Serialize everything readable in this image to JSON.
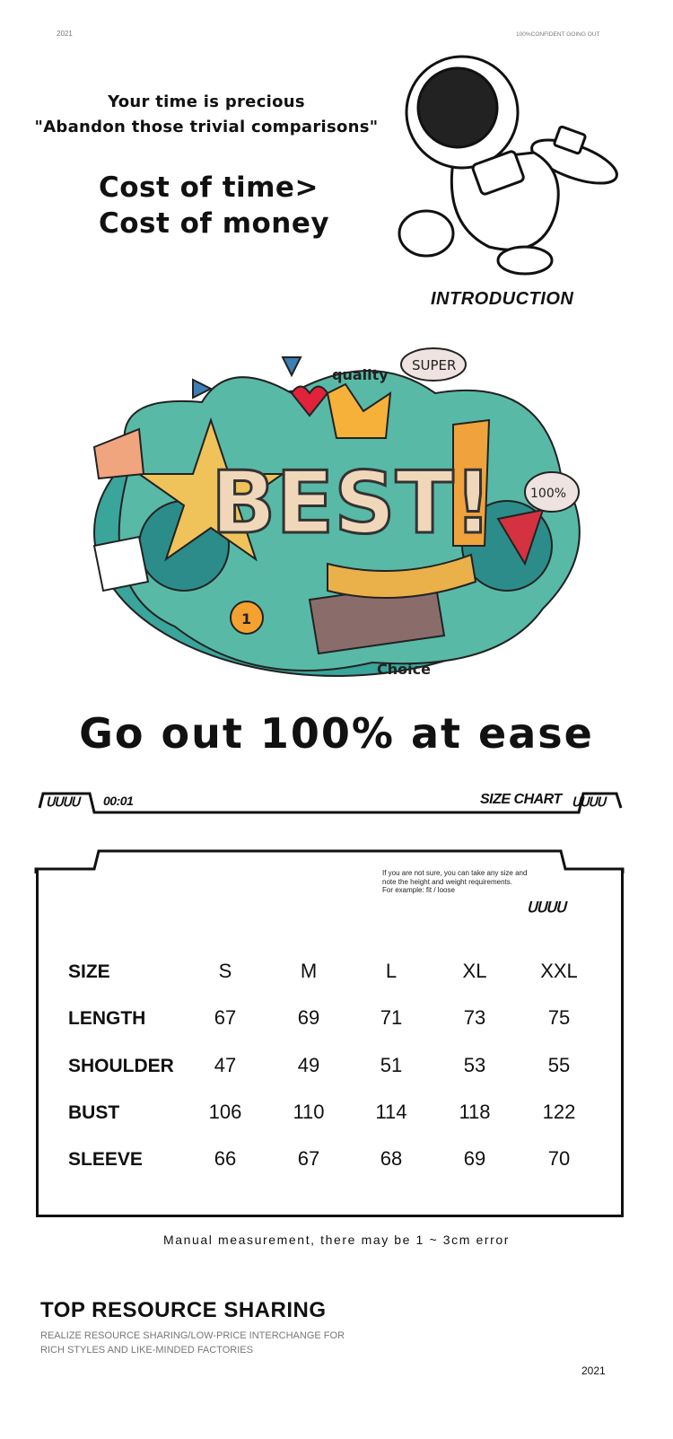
{
  "header": {
    "year": "2021",
    "tagline": "100%CONFIDENT GOING OUT"
  },
  "intro": {
    "line1": "Your time is precious",
    "line2": "\"Abandon those trivial comparisons\"",
    "cost1": "Cost of time>",
    "cost2": "Cost of money",
    "label": "INTRODUCTION"
  },
  "illustration": {
    "quality": "quality",
    "super": "SUPER",
    "best": "BEST!",
    "percent": "100%",
    "choice": "Choice",
    "one": "1"
  },
  "headline": "Go out 100% at ease",
  "size_chart": {
    "counter": "00:01",
    "title": "SIZE CHART",
    "tab_glyphs": "ᑌᑌᑌᑌ",
    "note": [
      "If you are not sure, you can take any size and",
      "note the height and weight requirements.",
      "For example: fit / loose"
    ],
    "rows": [
      {
        "label": "SIZE",
        "values": [
          "S",
          "M",
          "L",
          "XL",
          "XXL"
        ]
      },
      {
        "label": "LENGTH",
        "values": [
          "67",
          "69",
          "71",
          "73",
          "75"
        ]
      },
      {
        "label": "SHOULDER",
        "values": [
          "47",
          "49",
          "51",
          "53",
          "55"
        ]
      },
      {
        "label": "BUST",
        "values": [
          "106",
          "110",
          "114",
          "118",
          "122"
        ]
      },
      {
        "label": "SLEEVE",
        "values": [
          "66",
          "67",
          "68",
          "69",
          "70"
        ]
      }
    ],
    "footnote": "Manual measurement, there may be 1 ~ 3cm error"
  },
  "footer": {
    "title": "TOP RESOURCE SHARING",
    "subtitle": "REALIZE RESOURCE SHARING/LOW-PRICE INTERCHANGE FOR RICH STYLES AND LIKE-MINDED FACTORIES",
    "year": "2021"
  }
}
